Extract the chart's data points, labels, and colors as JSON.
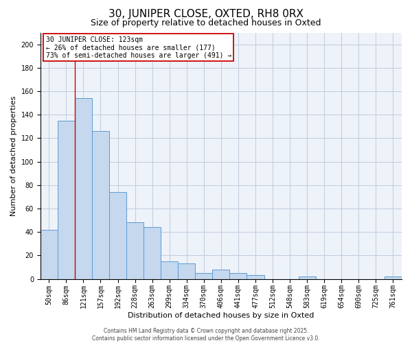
{
  "title": "30, JUNIPER CLOSE, OXTED, RH8 0RX",
  "subtitle": "Size of property relative to detached houses in Oxted",
  "xlabel": "Distribution of detached houses by size in Oxted",
  "ylabel": "Number of detached properties",
  "bin_labels": [
    "50sqm",
    "86sqm",
    "121sqm",
    "157sqm",
    "192sqm",
    "228sqm",
    "263sqm",
    "299sqm",
    "334sqm",
    "370sqm",
    "406sqm",
    "441sqm",
    "477sqm",
    "512sqm",
    "548sqm",
    "583sqm",
    "619sqm",
    "654sqm",
    "690sqm",
    "725sqm",
    "761sqm"
  ],
  "bar_heights": [
    42,
    135,
    154,
    126,
    74,
    48,
    44,
    15,
    13,
    5,
    8,
    5,
    3,
    0,
    0,
    2,
    0,
    0,
    0,
    0,
    2
  ],
  "bar_color": "#c5d8ed",
  "bar_edge_color": "#5b9bd5",
  "annotation_text_line1": "30 JUNIPER CLOSE: 123sqm",
  "annotation_text_line2": "← 26% of detached houses are smaller (177)",
  "annotation_text_line3": "73% of semi-detached houses are larger (491) →",
  "annotation_box_color": "#ffffff",
  "annotation_box_edge_color": "#cc0000",
  "vline_color": "#cc0000",
  "ylim": [
    0,
    210
  ],
  "yticks": [
    0,
    20,
    40,
    60,
    80,
    100,
    120,
    140,
    160,
    180,
    200
  ],
  "grid_color": "#c0ccdd",
  "background_color": "#eef2f9",
  "footer_line1": "Contains HM Land Registry data © Crown copyright and database right 2025.",
  "footer_line2": "Contains public sector information licensed under the Open Government Licence v3.0.",
  "title_fontsize": 11,
  "subtitle_fontsize": 9,
  "xlabel_fontsize": 8,
  "ylabel_fontsize": 8,
  "tick_fontsize": 7,
  "annotation_fontsize": 7,
  "footer_fontsize": 5.5
}
